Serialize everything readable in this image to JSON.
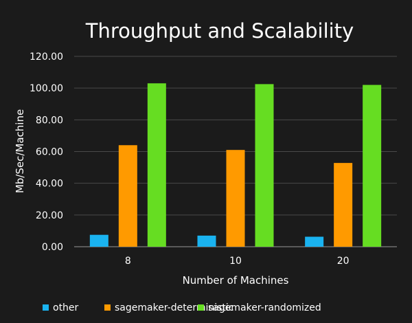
{
  "chart_data": {
    "type": "bar",
    "title": "Throughput and Scalability",
    "xlabel": "Number of Machines",
    "ylabel": "Mb/Sec/Machine",
    "categories": [
      "8",
      "10",
      "20"
    ],
    "ylim": [
      0,
      120
    ],
    "yticks": [
      "0.00",
      "20.00",
      "40.00",
      "60.00",
      "80.00",
      "100.00",
      "120.00"
    ],
    "grid": true,
    "legend_position": "bottom",
    "series": [
      {
        "name": "other",
        "color": "#1ab3f0",
        "values": [
          7.5,
          7,
          6.3
        ]
      },
      {
        "name": "sagemaker-deterministic",
        "color": "#ff9a00",
        "values": [
          64,
          61,
          52.8
        ]
      },
      {
        "name": "sagemaker-randomized",
        "color": "#66dd22",
        "values": [
          103,
          102.5,
          102
        ]
      }
    ]
  }
}
